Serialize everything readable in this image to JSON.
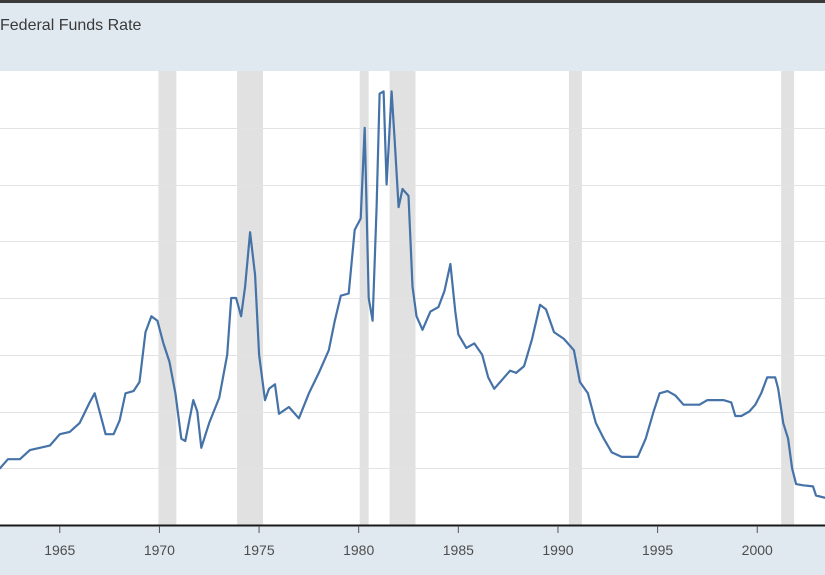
{
  "chart_data": {
    "type": "line",
    "title": "Federal Funds Rate",
    "xlabel": "",
    "ylabel": "",
    "xlim": [
      1962.0,
      2003.4
    ],
    "ylim": [
      0,
      20
    ],
    "grid": "horizontal",
    "x_tick_labels": [
      "1965",
      "1970",
      "1975",
      "1980",
      "1985",
      "1990",
      "1995",
      "2000"
    ],
    "x_ticks": [
      1965,
      1970,
      1975,
      1980,
      1985,
      1990,
      1995,
      2000
    ],
    "y_gridlines": [
      0,
      2.5,
      5,
      7.5,
      10,
      12.5,
      15,
      17.5
    ],
    "line_color": "#4572a7",
    "recession_color": "#e1e1e1",
    "recessions": [
      [
        1969.95,
        1970.85
      ],
      [
        1973.9,
        1975.2
      ],
      [
        1980.05,
        1980.5
      ],
      [
        1981.55,
        1982.85
      ],
      [
        1990.55,
        1991.2
      ],
      [
        2001.2,
        2001.85
      ]
    ],
    "series": [
      {
        "name": "",
        "points": [
          [
            1962.0,
            2.5
          ],
          [
            1962.2,
            2.7
          ],
          [
            1962.4,
            2.9
          ],
          [
            1962.7,
            2.9
          ],
          [
            1963.0,
            2.9
          ],
          [
            1963.5,
            3.3
          ],
          [
            1964.0,
            3.4
          ],
          [
            1964.5,
            3.5
          ],
          [
            1965.0,
            4.0
          ],
          [
            1965.5,
            4.1
          ],
          [
            1966.0,
            4.5
          ],
          [
            1966.5,
            5.4
          ],
          [
            1966.75,
            5.8
          ],
          [
            1967.0,
            5.0
          ],
          [
            1967.3,
            4.0
          ],
          [
            1967.7,
            4.0
          ],
          [
            1968.0,
            4.6
          ],
          [
            1968.3,
            5.8
          ],
          [
            1968.7,
            5.9
          ],
          [
            1969.0,
            6.3
          ],
          [
            1969.3,
            8.5
          ],
          [
            1969.6,
            9.2
          ],
          [
            1969.9,
            9.0
          ],
          [
            1970.2,
            8.0
          ],
          [
            1970.5,
            7.2
          ],
          [
            1970.8,
            5.8
          ],
          [
            1971.1,
            3.8
          ],
          [
            1971.3,
            3.7
          ],
          [
            1971.7,
            5.5
          ],
          [
            1971.9,
            5.0
          ],
          [
            1972.1,
            3.4
          ],
          [
            1972.5,
            4.5
          ],
          [
            1973.0,
            5.6
          ],
          [
            1973.4,
            7.5
          ],
          [
            1973.6,
            10.0
          ],
          [
            1973.85,
            10.0
          ],
          [
            1974.1,
            9.2
          ],
          [
            1974.3,
            10.5
          ],
          [
            1974.55,
            12.9
          ],
          [
            1974.8,
            11.0
          ],
          [
            1975.0,
            7.5
          ],
          [
            1975.3,
            5.5
          ],
          [
            1975.5,
            6.0
          ],
          [
            1975.8,
            6.2
          ],
          [
            1976.0,
            4.9
          ],
          [
            1976.5,
            5.2
          ],
          [
            1977.0,
            4.7
          ],
          [
            1977.5,
            5.8
          ],
          [
            1978.0,
            6.7
          ],
          [
            1978.5,
            7.7
          ],
          [
            1978.8,
            9.0
          ],
          [
            1979.1,
            10.1
          ],
          [
            1979.5,
            10.2
          ],
          [
            1979.8,
            13.0
          ],
          [
            1980.1,
            13.5
          ],
          [
            1980.3,
            17.5
          ],
          [
            1980.5,
            10.0
          ],
          [
            1980.7,
            9.0
          ],
          [
            1980.9,
            14.0
          ],
          [
            1981.05,
            19.0
          ],
          [
            1981.25,
            19.1
          ],
          [
            1981.4,
            15.0
          ],
          [
            1981.65,
            19.1
          ],
          [
            1981.8,
            17.0
          ],
          [
            1982.0,
            14.0
          ],
          [
            1982.2,
            14.8
          ],
          [
            1982.5,
            14.5
          ],
          [
            1982.7,
            10.5
          ],
          [
            1982.9,
            9.2
          ],
          [
            1983.2,
            8.6
          ],
          [
            1983.6,
            9.4
          ],
          [
            1984.0,
            9.6
          ],
          [
            1984.3,
            10.3
          ],
          [
            1984.6,
            11.5
          ],
          [
            1984.85,
            9.4
          ],
          [
            1985.0,
            8.4
          ],
          [
            1985.4,
            7.8
          ],
          [
            1985.8,
            8.0
          ],
          [
            1986.2,
            7.5
          ],
          [
            1986.5,
            6.5
          ],
          [
            1986.8,
            6.0
          ],
          [
            1987.2,
            6.4
          ],
          [
            1987.6,
            6.8
          ],
          [
            1987.9,
            6.7
          ],
          [
            1988.3,
            7.0
          ],
          [
            1988.7,
            8.2
          ],
          [
            1989.1,
            9.7
          ],
          [
            1989.4,
            9.5
          ],
          [
            1989.8,
            8.5
          ],
          [
            1990.3,
            8.2
          ],
          [
            1990.8,
            7.7
          ],
          [
            1991.1,
            6.3
          ],
          [
            1991.5,
            5.8
          ],
          [
            1991.9,
            4.5
          ],
          [
            1992.3,
            3.8
          ],
          [
            1992.7,
            3.2
          ],
          [
            1993.2,
            3.0
          ],
          [
            1993.6,
            3.0
          ],
          [
            1994.0,
            3.0
          ],
          [
            1994.4,
            3.8
          ],
          [
            1994.8,
            5.0
          ],
          [
            1995.1,
            5.8
          ],
          [
            1995.5,
            5.9
          ],
          [
            1995.9,
            5.7
          ],
          [
            1996.3,
            5.3
          ],
          [
            1996.7,
            5.3
          ],
          [
            1997.1,
            5.3
          ],
          [
            1997.5,
            5.5
          ],
          [
            1997.9,
            5.5
          ],
          [
            1998.3,
            5.5
          ],
          [
            1998.7,
            5.4
          ],
          [
            1998.9,
            4.8
          ],
          [
            1999.2,
            4.8
          ],
          [
            1999.6,
            5.0
          ],
          [
            1999.9,
            5.3
          ],
          [
            2000.2,
            5.8
          ],
          [
            2000.5,
            6.5
          ],
          [
            2000.9,
            6.5
          ],
          [
            2001.05,
            6.0
          ],
          [
            2001.3,
            4.5
          ],
          [
            2001.55,
            3.8
          ],
          [
            2001.75,
            2.5
          ],
          [
            2001.95,
            1.8
          ],
          [
            2002.3,
            1.75
          ],
          [
            2002.8,
            1.7
          ],
          [
            2002.95,
            1.3
          ],
          [
            2003.4,
            1.2
          ]
        ]
      }
    ]
  }
}
